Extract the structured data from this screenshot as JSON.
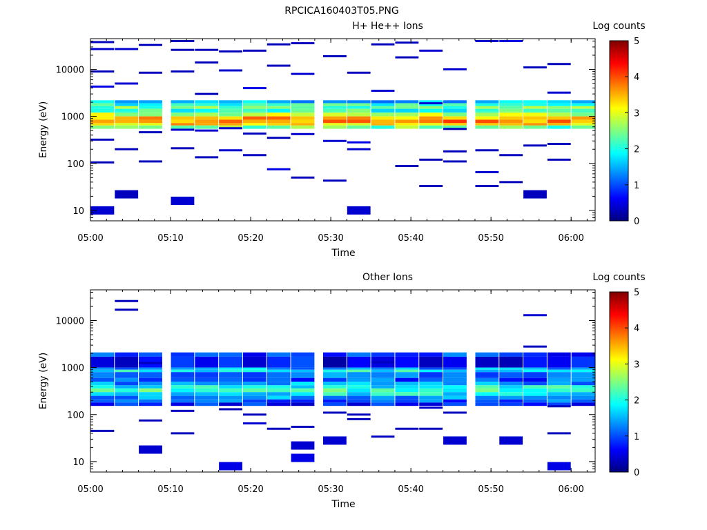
{
  "figure": {
    "title": "RPCICA160403T05.PNG"
  },
  "chart_data": [
    {
      "type": "heatmap",
      "title": "H+ He++ Ions",
      "xlabel": "Time",
      "ylabel": "Energy (eV)",
      "x_ticks": [
        "05:00",
        "05:10",
        "05:20",
        "05:30",
        "05:40",
        "05:50",
        "06:00"
      ],
      "x_range": [
        "05:00",
        "06:03"
      ],
      "y_scale": "log",
      "y_ticks": [
        10,
        100,
        1000,
        10000
      ],
      "y_range": [
        6,
        45000
      ],
      "colorbar": {
        "label": "Log counts",
        "range": [
          0,
          5
        ],
        "ticks": [
          0,
          1,
          2,
          3,
          4,
          5
        ]
      },
      "time_bins": [
        "05:00",
        "05:03",
        "05:06",
        "05:10",
        "05:13",
        "05:16",
        "05:19",
        "05:22",
        "05:25",
        "05:29",
        "05:32",
        "05:35",
        "05:38",
        "05:41",
        "05:44",
        "05:48",
        "05:51",
        "05:54",
        "05:57",
        "06:00"
      ],
      "core_band": {
        "energy_range": [
          600,
          2300
        ],
        "profile": [
          [
            2200,
            1.6
          ],
          [
            1900,
            2.0
          ],
          [
            1650,
            2.4
          ],
          [
            1450,
            2.1
          ],
          [
            1200,
            2.8
          ],
          [
            1000,
            3.5
          ],
          [
            850,
            3.7
          ],
          [
            720,
            3.3
          ],
          [
            640,
            2.4
          ]
        ]
      },
      "sparse_hits": [
        [
          0,
          10,
          0.4
        ],
        [
          0,
          105,
          0.3
        ],
        [
          0,
          320,
          0.3
        ],
        [
          0,
          4300,
          0.5
        ],
        [
          0,
          9000,
          0.3
        ],
        [
          0,
          27000,
          0.4
        ],
        [
          0,
          38000,
          0.3
        ],
        [
          1,
          22,
          0.3
        ],
        [
          1,
          200,
          0.3
        ],
        [
          1,
          5000,
          0.4
        ],
        [
          1,
          27000,
          0.4
        ],
        [
          2,
          110,
          0.3
        ],
        [
          2,
          460,
          0.3
        ],
        [
          2,
          8500,
          0.3
        ],
        [
          2,
          33000,
          0.3
        ],
        [
          3,
          16,
          0.4
        ],
        [
          3,
          210,
          0.3
        ],
        [
          3,
          520,
          0.4
        ],
        [
          3,
          9000,
          0.3
        ],
        [
          3,
          26000,
          0.3
        ],
        [
          3,
          40000,
          0.3
        ],
        [
          4,
          135,
          0.3
        ],
        [
          4,
          500,
          0.4
        ],
        [
          4,
          3000,
          0.3
        ],
        [
          4,
          14000,
          0.3
        ],
        [
          4,
          26000,
          0.3
        ],
        [
          5,
          190,
          0.4
        ],
        [
          5,
          560,
          0.4
        ],
        [
          5,
          9500,
          0.4
        ],
        [
          5,
          24000,
          0.3
        ],
        [
          6,
          150,
          0.3
        ],
        [
          6,
          430,
          0.3
        ],
        [
          6,
          4000,
          0.5
        ],
        [
          6,
          25000,
          0.3
        ],
        [
          7,
          75,
          0.5
        ],
        [
          7,
          350,
          0.3
        ],
        [
          7,
          12000,
          0.3
        ],
        [
          7,
          34000,
          0.3
        ],
        [
          8,
          50,
          0.3
        ],
        [
          8,
          420,
          0.4
        ],
        [
          8,
          8000,
          0.4
        ],
        [
          8,
          36000,
          0.3
        ],
        [
          9,
          43,
          0.3
        ],
        [
          9,
          300,
          0.4
        ],
        [
          9,
          19000,
          0.3
        ],
        [
          10,
          10,
          0.4
        ],
        [
          10,
          200,
          0.4
        ],
        [
          10,
          280,
          0.5
        ],
        [
          10,
          8500,
          0.3
        ],
        [
          11,
          3500,
          0.4
        ],
        [
          11,
          34000,
          0.3
        ],
        [
          12,
          88,
          0.3
        ],
        [
          12,
          18000,
          0.3
        ],
        [
          12,
          37000,
          0.3
        ],
        [
          13,
          33,
          0.3
        ],
        [
          13,
          120,
          0.3
        ],
        [
          13,
          1900,
          0.4
        ],
        [
          13,
          25000,
          0.4
        ],
        [
          14,
          110,
          0.3
        ],
        [
          14,
          180,
          0.3
        ],
        [
          14,
          540,
          0.3
        ],
        [
          14,
          10000,
          0.4
        ],
        [
          15,
          33,
          0.3
        ],
        [
          15,
          65,
          0.4
        ],
        [
          15,
          190,
          0.3
        ],
        [
          15,
          40000,
          0.4
        ],
        [
          16,
          40,
          0.3
        ],
        [
          16,
          150,
          0.3
        ],
        [
          16,
          40000,
          0.5
        ],
        [
          17,
          22,
          0.3
        ],
        [
          17,
          240,
          0.3
        ],
        [
          17,
          11000,
          0.3
        ],
        [
          18,
          120,
          0.3
        ],
        [
          18,
          260,
          0.3
        ],
        [
          18,
          3200,
          0.4
        ],
        [
          18,
          13000,
          0.3
        ]
      ]
    },
    {
      "type": "heatmap",
      "title": "Other Ions",
      "xlabel": "Time",
      "ylabel": "Energy (eV)",
      "x_ticks": [
        "05:00",
        "05:10",
        "05:20",
        "05:30",
        "05:40",
        "05:50",
        "06:00"
      ],
      "x_range": [
        "05:00",
        "06:03"
      ],
      "y_scale": "log",
      "y_ticks": [
        10,
        100,
        1000,
        10000
      ],
      "y_range": [
        6,
        45000
      ],
      "colorbar": {
        "label": "Log counts",
        "range": [
          0,
          5
        ],
        "ticks": [
          0,
          1,
          2,
          3,
          4,
          5
        ]
      },
      "time_bins": [
        "05:00",
        "05:03",
        "05:06",
        "05:10",
        "05:13",
        "05:16",
        "05:19",
        "05:22",
        "05:25",
        "05:29",
        "05:32",
        "05:35",
        "05:38",
        "05:41",
        "05:44",
        "05:48",
        "05:51",
        "05:54",
        "05:57",
        "06:00"
      ],
      "core_band": {
        "energy_range": [
          150,
          2200
        ],
        "profile": [
          [
            2100,
            0.9
          ],
          [
            1700,
            0.6
          ],
          [
            1000,
            1.4
          ],
          [
            900,
            1.9
          ],
          [
            800,
            1.3
          ],
          [
            600,
            1.0
          ],
          [
            500,
            1.4
          ],
          [
            420,
            1.9
          ],
          [
            360,
            2.2
          ],
          [
            300,
            1.8
          ],
          [
            250,
            1.4
          ],
          [
            210,
            1.1
          ],
          [
            180,
            0.7
          ]
        ]
      },
      "sparse_hits": [
        [
          0,
          45,
          0.3
        ],
        [
          1,
          17000,
          0.3
        ],
        [
          1,
          26000,
          0.3
        ],
        [
          2,
          18,
          0.4
        ],
        [
          2,
          75,
          0.3
        ],
        [
          2,
          1250,
          0.3
        ],
        [
          3,
          40,
          0.3
        ],
        [
          3,
          120,
          0.3
        ],
        [
          5,
          8,
          0.5
        ],
        [
          5,
          130,
          0.3
        ],
        [
          6,
          65,
          0.4
        ],
        [
          6,
          100,
          0.3
        ],
        [
          7,
          50,
          0.3
        ],
        [
          8,
          12,
          0.5
        ],
        [
          8,
          22,
          0.4
        ],
        [
          8,
          55,
          0.3
        ],
        [
          9,
          28,
          0.4
        ],
        [
          9,
          110,
          0.3
        ],
        [
          10,
          80,
          0.3
        ],
        [
          10,
          100,
          0.3
        ],
        [
          11,
          34,
          0.3
        ],
        [
          11,
          1300,
          0.3
        ],
        [
          12,
          50,
          0.3
        ],
        [
          13,
          50,
          0.3
        ],
        [
          13,
          140,
          0.4
        ],
        [
          14,
          28,
          0.4
        ],
        [
          14,
          110,
          0.3
        ],
        [
          16,
          28,
          0.4
        ],
        [
          17,
          2800,
          0.3
        ],
        [
          17,
          13000,
          0.4
        ],
        [
          18,
          8,
          0.5
        ],
        [
          18,
          40,
          0.3
        ],
        [
          18,
          150,
          0.3
        ]
      ]
    }
  ]
}
